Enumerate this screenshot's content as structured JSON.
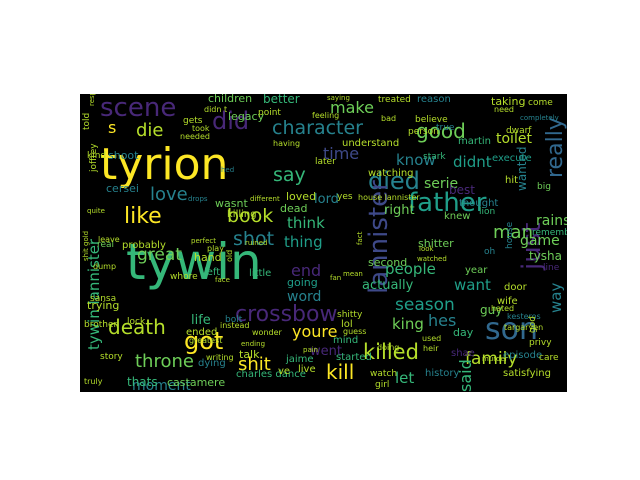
{
  "colors": {
    "background": "#000000",
    "page": "#ffffff",
    "palette": [
      "#fde725",
      "#b5de2b",
      "#6ece58",
      "#35b779",
      "#1f9e89",
      "#26828e",
      "#31688e",
      "#3e4989",
      "#482878",
      "#440154"
    ]
  },
  "words": [
    {
      "text": "tyrion",
      "color": "#fde725"
    },
    {
      "text": "tywin",
      "color": "#35b779"
    },
    {
      "text": "son",
      "color": "#31688e"
    },
    {
      "text": "father",
      "color": "#1f9e89"
    },
    {
      "text": "died",
      "color": "#26828e"
    },
    {
      "text": "crossbow",
      "color": "#482878"
    },
    {
      "text": "lannister",
      "color": "#3e4989"
    },
    {
      "text": "just",
      "color": "#482878"
    },
    {
      "text": "scene",
      "color": "#482878"
    },
    {
      "text": "did",
      "color": "#482878"
    },
    {
      "text": "got",
      "color": "#fde725"
    },
    {
      "text": "killed",
      "color": "#b5de2b"
    },
    {
      "text": "like",
      "color": "#fde725"
    },
    {
      "text": "character",
      "color": "#26828e"
    },
    {
      "text": "really",
      "color": "#31688e"
    },
    {
      "text": "book",
      "color": "#b5de2b"
    },
    {
      "text": "death",
      "color": "#b5de2b"
    },
    {
      "text": "kill",
      "color": "#fde725"
    },
    {
      "text": "shit",
      "color": "#fde725"
    },
    {
      "text": "family",
      "color": "#b5de2b"
    },
    {
      "text": "season",
      "color": "#1f9e89"
    },
    {
      "text": "throne",
      "color": "#6ece58"
    },
    {
      "text": "good",
      "color": "#6ece58"
    },
    {
      "text": "die",
      "color": "#b5de2b"
    },
    {
      "text": "love",
      "color": "#26828e"
    },
    {
      "text": "shot",
      "color": "#26828e"
    },
    {
      "text": "say",
      "color": "#35b779"
    },
    {
      "text": "time",
      "color": "#3e4989"
    },
    {
      "text": "make",
      "color": "#6ece58"
    },
    {
      "text": "youre",
      "color": "#fde725"
    },
    {
      "text": "man",
      "color": "#6ece58"
    },
    {
      "text": "end",
      "color": "#482878"
    },
    {
      "text": "s",
      "color": "#fde725"
    },
    {
      "text": "think",
      "color": "#35b779"
    },
    {
      "text": "great",
      "color": "#6ece58"
    },
    {
      "text": "thing",
      "color": "#1f9e89"
    },
    {
      "text": "people",
      "color": "#35b779"
    },
    {
      "text": "tywin lannister",
      "color": "#35b779"
    },
    {
      "text": "know",
      "color": "#26828e"
    },
    {
      "text": "didnt",
      "color": "#1f9e89"
    },
    {
      "text": "rains",
      "color": "#6ece58"
    },
    {
      "text": "game",
      "color": "#6ece58"
    },
    {
      "text": "way",
      "color": "#26828e"
    },
    {
      "text": "king",
      "color": "#6ece58"
    },
    {
      "text": "moment",
      "color": "#26828e"
    },
    {
      "text": "serie",
      "color": "#6ece58"
    },
    {
      "text": "toilet",
      "color": "#b5de2b"
    },
    {
      "text": "said",
      "color": "#35b779"
    },
    {
      "text": "hes",
      "color": "#26828e"
    },
    {
      "text": "want",
      "color": "#1f9e89"
    },
    {
      "text": "word",
      "color": "#26828e"
    },
    {
      "text": "let",
      "color": "#35b779"
    },
    {
      "text": "right",
      "color": "#6ece58"
    },
    {
      "text": "went",
      "color": "#482878"
    },
    {
      "text": "life",
      "color": "#35b779"
    },
    {
      "text": "lord",
      "color": "#26828e"
    },
    {
      "text": "actually",
      "color": "#35b779"
    },
    {
      "text": "wanted",
      "color": "#26828e"
    },
    {
      "text": "tysha",
      "color": "#6ece58"
    },
    {
      "text": "better",
      "color": "#35b779"
    },
    {
      "text": "children",
      "color": "#6ece58"
    },
    {
      "text": "legacy",
      "color": "#6ece58"
    },
    {
      "text": "loved",
      "color": "#b5de2b"
    },
    {
      "text": "thats",
      "color": "#35b779"
    },
    {
      "text": "castamere",
      "color": "#6ece58"
    },
    {
      "text": "taking",
      "color": "#b5de2b"
    },
    {
      "text": "dead",
      "color": "#6ece58"
    },
    {
      "text": "knew",
      "color": "#6ece58"
    },
    {
      "text": "going",
      "color": "#1f9e89"
    },
    {
      "text": "wasnt",
      "color": "#6ece58"
    },
    {
      "text": "killing",
      "color": "#b5de2b"
    },
    {
      "text": "charles dance",
      "color": "#35b779"
    },
    {
      "text": "shae",
      "color": "#482878"
    },
    {
      "text": "episode",
      "color": "#26828e"
    },
    {
      "text": "satisfying",
      "color": "#b5de2b"
    },
    {
      "text": "history",
      "color": "#26828e"
    },
    {
      "text": "best",
      "color": "#482878"
    },
    {
      "text": "thought",
      "color": "#26828e"
    },
    {
      "text": "second",
      "color": "#6ece58"
    },
    {
      "text": "shitter",
      "color": "#6ece58"
    },
    {
      "text": "probably",
      "color": "#b5de2b"
    },
    {
      "text": "hand",
      "color": "#b5de2b"
    },
    {
      "text": "trying",
      "color": "#b5de2b"
    },
    {
      "text": "ended",
      "color": "#b5de2b"
    },
    {
      "text": "talk",
      "color": "#b5de2b"
    },
    {
      "text": "jaime",
      "color": "#35b779"
    },
    {
      "text": "dying",
      "color": "#26828e"
    },
    {
      "text": "little",
      "color": "#35b779"
    },
    {
      "text": "left",
      "color": "#35b779"
    },
    {
      "text": "wife",
      "color": "#b5de2b"
    },
    {
      "text": "door",
      "color": "#b5de2b"
    },
    {
      "text": "year",
      "color": "#6ece58"
    },
    {
      "text": "guy",
      "color": "#6ece58"
    },
    {
      "text": "day",
      "color": "#35b779"
    },
    {
      "text": "lol",
      "color": "#b5de2b"
    },
    {
      "text": "mind",
      "color": "#35b779"
    },
    {
      "text": "started",
      "color": "#35b779"
    },
    {
      "text": "shoot",
      "color": "#26828e"
    },
    {
      "text": "cersei",
      "color": "#26828e"
    },
    {
      "text": "understand",
      "color": "#b5de2b"
    },
    {
      "text": "watching",
      "color": "#b5de2b"
    },
    {
      "text": "later",
      "color": "#b5de2b"
    },
    {
      "text": "ve",
      "color": "#b5de2b"
    },
    {
      "text": "live",
      "color": "#b5de2b"
    },
    {
      "text": "watch",
      "color": "#b5de2b"
    },
    {
      "text": "girl",
      "color": "#b5de2b"
    },
    {
      "text": "bolt",
      "color": "#26828e"
    },
    {
      "text": "execute",
      "color": "#1f9e89"
    },
    {
      "text": "kesteros",
      "color": "#26828e"
    },
    {
      "text": "martin",
      "color": "#35b779"
    },
    {
      "text": "stark",
      "color": "#35b779"
    },
    {
      "text": "lion",
      "color": "#35b779"
    },
    {
      "text": "hit",
      "color": "#b5de2b"
    },
    {
      "text": "big",
      "color": "#6ece58"
    },
    {
      "text": "remember",
      "color": "#35b779"
    },
    {
      "text": "house",
      "color": "#26828e"
    },
    {
      "text": "line",
      "color": "#482878"
    },
    {
      "text": "privy",
      "color": "#b5de2b"
    },
    {
      "text": "care",
      "color": "#b5de2b"
    },
    {
      "text": "god",
      "color": "#b5de2b"
    },
    {
      "text": "dwarf",
      "color": "#b5de2b"
    },
    {
      "text": "believe",
      "color": "#b5de2b"
    },
    {
      "text": "person",
      "color": "#b5de2b"
    },
    {
      "text": "true",
      "color": "#26828e"
    },
    {
      "text": "reason",
      "color": "#26828e"
    },
    {
      "text": "treated",
      "color": "#b5de2b"
    },
    {
      "text": "come",
      "color": "#b5de2b"
    },
    {
      "text": "completely",
      "color": "#26828e"
    },
    {
      "text": "point",
      "color": "#b5de2b"
    },
    {
      "text": "feeling",
      "color": "#b5de2b"
    },
    {
      "text": "saying",
      "color": "#b5de2b"
    },
    {
      "text": "need",
      "color": "#b5de2b"
    },
    {
      "text": "bad",
      "color": "#b5de2b"
    },
    {
      "text": "gets",
      "color": "#b5de2b"
    },
    {
      "text": "took",
      "color": "#b5de2b"
    },
    {
      "text": "needed",
      "color": "#b5de2b"
    },
    {
      "text": "didn t",
      "color": "#b5de2b"
    },
    {
      "text": "having",
      "color": "#b5de2b"
    },
    {
      "text": "told",
      "color": "#b5de2b"
    },
    {
      "text": "joffrey",
      "color": "#b5de2b"
    },
    {
      "text": "kind",
      "color": "#b5de2b"
    },
    {
      "text": "real",
      "color": "#6ece58"
    },
    {
      "text": "leave",
      "color": "#b5de2b"
    },
    {
      "text": "dump",
      "color": "#b5de2b"
    },
    {
      "text": "play",
      "color": "#b5de2b"
    },
    {
      "text": "whore",
      "color": "#b5de2b"
    },
    {
      "text": "brother",
      "color": "#b5de2b"
    },
    {
      "text": "sansa",
      "color": "#b5de2b"
    },
    {
      "text": "lock",
      "color": "#b5de2b"
    },
    {
      "text": "story",
      "color": "#b5de2b"
    },
    {
      "text": "truly",
      "color": "#b5de2b"
    },
    {
      "text": "writing",
      "color": "#b5de2b"
    },
    {
      "text": "greatest",
      "color": "#b5de2b"
    },
    {
      "text": "instead",
      "color": "#b5de2b"
    },
    {
      "text": "wonder",
      "color": "#b5de2b"
    },
    {
      "text": "ending",
      "color": "#b5de2b"
    },
    {
      "text": "pain",
      "color": "#b5de2b"
    },
    {
      "text": "guess",
      "color": "#b5de2b"
    },
    {
      "text": "used",
      "color": "#b5de2b"
    },
    {
      "text": "heir",
      "color": "#b5de2b"
    },
    {
      "text": "murder",
      "color": "#b5de2b"
    },
    {
      "text": "hated",
      "color": "#b5de2b"
    },
    {
      "text": "targaryen",
      "color": "#b5de2b"
    },
    {
      "text": "oh",
      "color": "#26828e"
    },
    {
      "text": "house lannister",
      "color": "#b5de2b"
    },
    {
      "text": "doing",
      "color": "#b5de2b"
    },
    {
      "text": "different",
      "color": "#b5de2b"
    },
    {
      "text": "ruined",
      "color": "#b5de2b"
    },
    {
      "text": "perfect",
      "color": "#b5de2b"
    },
    {
      "text": "yes",
      "color": "#b5de2b"
    },
    {
      "text": "watched",
      "color": "#b5de2b"
    },
    {
      "text": "look",
      "color": "#b5de2b"
    },
    {
      "text": "face",
      "color": "#b5de2b"
    },
    {
      "text": "old",
      "color": "#b5de2b"
    },
    {
      "text": "shitty",
      "color": "#b5de2b"
    },
    {
      "text": "shit gold",
      "color": "#b5de2b"
    },
    {
      "text": "fact",
      "color": "#b5de2b"
    },
    {
      "text": "mean",
      "color": "#b5de2b"
    },
    {
      "text": "drops",
      "color": "#26828e"
    },
    {
      "text": "hed",
      "color": "#26828e"
    },
    {
      "text": "quite",
      "color": "#b5de2b"
    },
    {
      "text": "respect",
      "color": "#b5de2b"
    },
    {
      "text": "fan",
      "color": "#b5de2b"
    }
  ]
}
